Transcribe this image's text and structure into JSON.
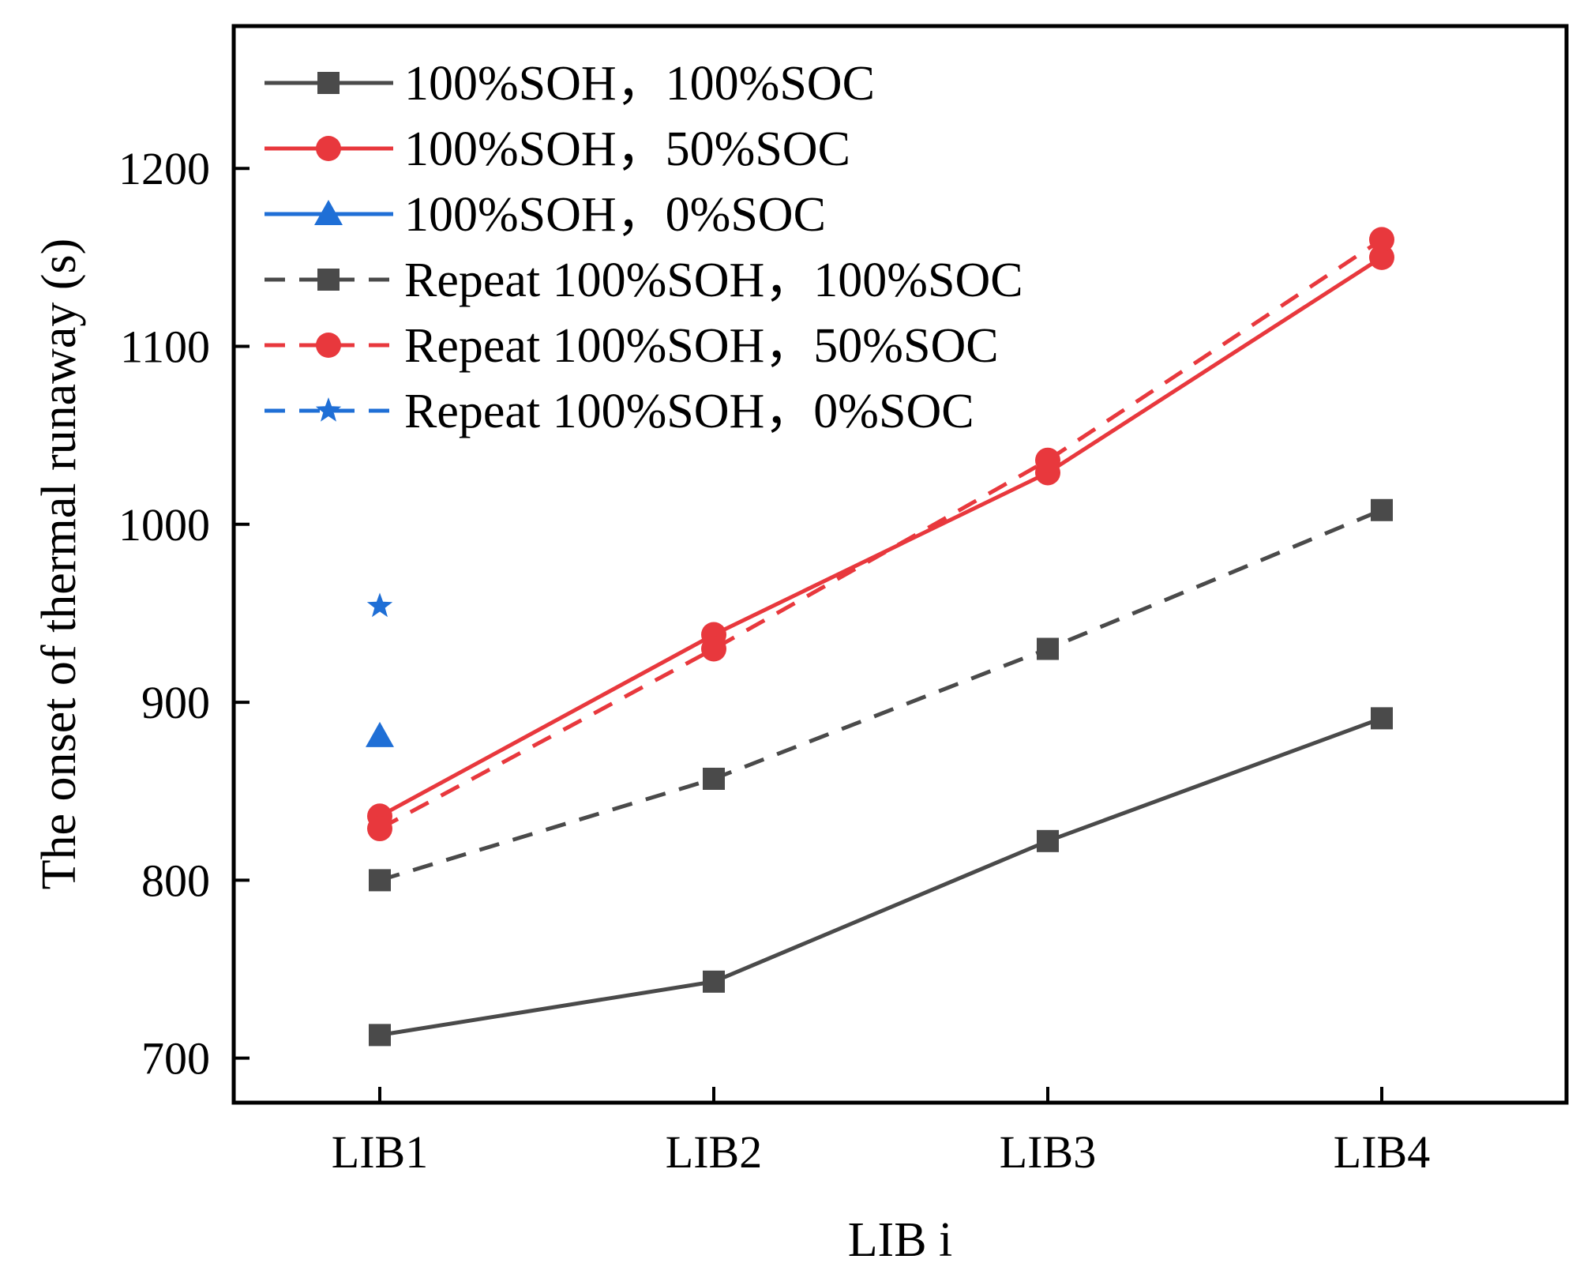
{
  "chart_data": {
    "type": "line",
    "title": "",
    "xlabel": "LIB i",
    "ylabel": "The onset of thermal runaway (s)",
    "categories": [
      "LIB1",
      "LIB2",
      "LIB3",
      "LIB4"
    ],
    "ylim": [
      675,
      1280
    ],
    "yticks": [
      700,
      800,
      900,
      1000,
      1100,
      1200
    ],
    "grid": false,
    "legend_position": "top-left",
    "series": [
      {
        "name": "100%SOH，100%SOC",
        "values": [
          713,
          743,
          822,
          891
        ],
        "color": "#4a4a4a",
        "dash": "solid",
        "marker": "square"
      },
      {
        "name": "100%SOH，50%SOC",
        "values": [
          836,
          938,
          1029,
          1150
        ],
        "color": "#e8383d",
        "dash": "solid",
        "marker": "circle"
      },
      {
        "name": "100%SOH，0%SOC",
        "values": [
          881,
          null,
          null,
          null
        ],
        "color": "#1f6fd6",
        "dash": "solid",
        "marker": "triangle"
      },
      {
        "name": "Repeat 100%SOH，100%SOC",
        "values": [
          800,
          857,
          930,
          1008
        ],
        "color": "#4a4a4a",
        "dash": "dashed",
        "marker": "square"
      },
      {
        "name": "Repeat 100%SOH，50%SOC",
        "values": [
          829,
          930,
          1036,
          1160
        ],
        "color": "#e8383d",
        "dash": "dashed",
        "marker": "circle"
      },
      {
        "name": "Repeat 100%SOH，0%SOC",
        "values": [
          954,
          null,
          null,
          null
        ],
        "color": "#1f6fd6",
        "dash": "dashed",
        "marker": "star"
      }
    ]
  }
}
